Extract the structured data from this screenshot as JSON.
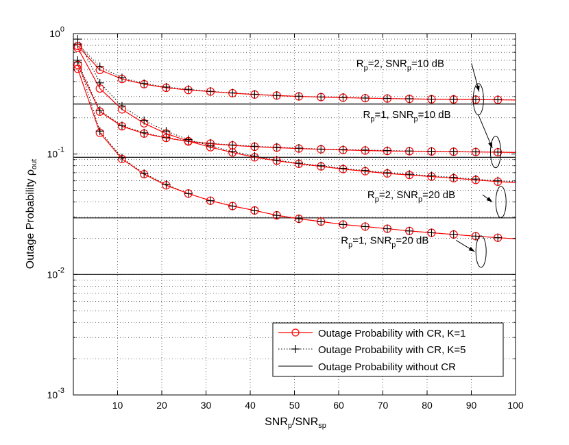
{
  "chart_data": {
    "type": "line",
    "xlabel": {
      "main": "SNR",
      "sub1": "p",
      "mid": "/SNR",
      "sub2": "sp"
    },
    "ylabel": {
      "main": "Outage Probability ρ",
      "sub": "out"
    },
    "xlim": [
      0,
      100
    ],
    "ylim": [
      0.001,
      1
    ],
    "yscale": "log",
    "grid": true,
    "x_ticks": [
      10,
      20,
      30,
      40,
      50,
      60,
      70,
      80,
      90,
      100
    ],
    "y_ticks": [
      {
        "value": 1,
        "base": "10",
        "exp": "0"
      },
      {
        "value": 0.1,
        "base": "10",
        "exp": "-1"
      },
      {
        "value": 0.01,
        "base": "10",
        "exp": "-2"
      },
      {
        "value": 0.001,
        "base": "10",
        "exp": "-3"
      }
    ],
    "colors": {
      "with_cr": "#ff0000",
      "with_cr_k5": "#000000",
      "without_cr": "#000000"
    },
    "legend": {
      "position": "bottom-right",
      "entries": [
        {
          "label": "Outage Probability with CR, K=1",
          "style": "red-circle"
        },
        {
          "label": "Outage Probability with CR, K=5",
          "style": "black-plus-dotted"
        },
        {
          "label": "Outage Probability without CR",
          "style": "black-solid"
        }
      ]
    },
    "series": [
      {
        "name": "Rp=2, SNRp=10 dB",
        "x": [
          1,
          6,
          11,
          16,
          21,
          26,
          31,
          36,
          41,
          46,
          51,
          56,
          61,
          66,
          71,
          76,
          81,
          86,
          91,
          96,
          100
        ],
        "k1": [
          0.79,
          0.5,
          0.42,
          0.38,
          0.355,
          0.34,
          0.33,
          0.32,
          0.312,
          0.306,
          0.301,
          0.297,
          0.294,
          0.291,
          0.289,
          0.287,
          0.285,
          0.284,
          0.283,
          0.282,
          0.281
        ],
        "k5": [
          0.82,
          0.53,
          0.43,
          0.385,
          0.36,
          0.345,
          0.332,
          0.322,
          0.314,
          0.307,
          0.302,
          0.298,
          0.295,
          0.292,
          0.29,
          0.288,
          0.286,
          0.285,
          0.284,
          0.283,
          0.282
        ],
        "without_cr": 0.26
      },
      {
        "name": "Rp=1, SNRp=10 dB",
        "x": [
          1,
          6,
          11,
          16,
          21,
          26,
          31,
          36,
          41,
          46,
          51,
          56,
          61,
          66,
          71,
          76,
          81,
          86,
          91,
          96,
          100
        ],
        "k1": [
          0.55,
          0.225,
          0.17,
          0.148,
          0.136,
          0.127,
          0.122,
          0.118,
          0.115,
          0.113,
          0.111,
          0.1095,
          0.108,
          0.107,
          0.106,
          0.1055,
          0.105,
          0.1045,
          0.104,
          0.1035,
          0.103
        ],
        "k5": [
          0.58,
          0.23,
          0.172,
          0.15,
          0.137,
          0.128,
          0.123,
          0.119,
          0.116,
          0.114,
          0.112,
          0.11,
          0.109,
          0.108,
          0.107,
          0.106,
          0.1055,
          0.105,
          0.1045,
          0.104,
          0.1035
        ],
        "without_cr": 0.094
      },
      {
        "name": "Rp=2, SNRp=20 dB",
        "x": [
          1,
          6,
          11,
          16,
          21,
          26,
          31,
          36,
          41,
          46,
          51,
          56,
          61,
          66,
          71,
          76,
          81,
          86,
          91,
          96,
          100
        ],
        "k1": [
          0.76,
          0.35,
          0.235,
          0.18,
          0.148,
          0.128,
          0.114,
          0.103,
          0.094,
          0.088,
          0.083,
          0.079,
          0.075,
          0.072,
          0.069,
          0.067,
          0.065,
          0.063,
          0.061,
          0.059,
          0.058
        ],
        "k5": [
          0.9,
          0.39,
          0.25,
          0.19,
          0.155,
          0.132,
          0.117,
          0.105,
          0.096,
          0.089,
          0.084,
          0.08,
          0.076,
          0.073,
          0.07,
          0.068,
          0.066,
          0.064,
          0.062,
          0.06,
          0.059
        ],
        "without_cr": 0.0295
      },
      {
        "name": "Rp=1, SNRp=20 dB",
        "x": [
          1,
          6,
          11,
          16,
          21,
          26,
          31,
          36,
          41,
          46,
          51,
          56,
          61,
          66,
          71,
          76,
          81,
          86,
          91,
          96,
          100
        ],
        "k1": [
          0.51,
          0.15,
          0.091,
          0.068,
          0.055,
          0.047,
          0.041,
          0.037,
          0.034,
          0.031,
          0.029,
          0.0275,
          0.026,
          0.025,
          0.024,
          0.023,
          0.0222,
          0.0215,
          0.0208,
          0.0202,
          0.0198
        ],
        "k5": [
          0.6,
          0.155,
          0.093,
          0.069,
          0.056,
          0.047,
          0.041,
          0.037,
          0.034,
          0.031,
          0.029,
          0.0275,
          0.026,
          0.025,
          0.024,
          0.023,
          0.0222,
          0.0215,
          0.0208,
          0.0202,
          0.0198
        ],
        "without_cr": 0.01
      }
    ],
    "annotations": [
      {
        "R": "R",
        "Rsub": "p",
        "Rval": "=2, ",
        "S": "SNR",
        "Ssub": "p",
        "Sval": "=10 dB",
        "text_x": 64,
        "text_y": 0.53,
        "arrow_to": [
          93,
          0.33
        ],
        "ellipse": {
          "cx": 91.6,
          "cy": 0.285
        }
      },
      {
        "R": "R",
        "Rsub": "p",
        "Rval": "=1, ",
        "S": "SNR",
        "Ssub": "p",
        "Sval": "=10 dB",
        "text_x": 65.5,
        "text_y": 0.2,
        "arrow_to": [
          96,
          0.112
        ],
        "ellipse": {
          "cx": 95.5,
          "cy": 0.104
        }
      },
      {
        "R": "R",
        "Rsub": "p",
        "Rval": "=2, ",
        "S": "SNR",
        "Ssub": "p",
        "Sval": "=20 dB",
        "text_x": 66.5,
        "text_y": 0.043,
        "arrow_to": [
          96,
          0.04
        ],
        "ellipse": {
          "cx": 96.7,
          "cy": 0.04
        }
      },
      {
        "R": "R",
        "Rsub": "p",
        "Rval": "=1, ",
        "S": "SNR",
        "Ssub": "p",
        "Sval": "=20 dB",
        "text_x": 60.5,
        "text_y": 0.018,
        "arrow_to": [
          92,
          0.0155
        ],
        "ellipse": {
          "cx": 92.2,
          "cy": 0.0155
        }
      }
    ]
  }
}
